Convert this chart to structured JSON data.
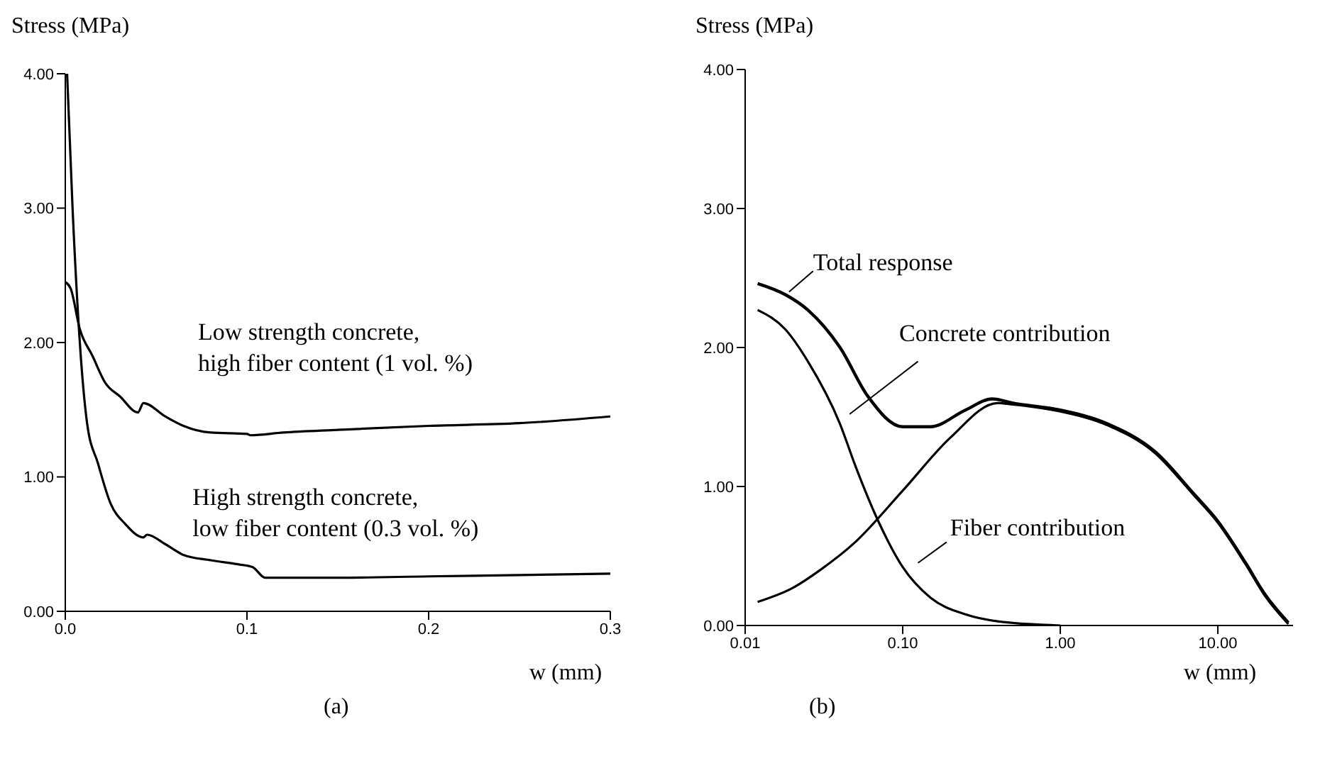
{
  "chart_data": [
    {
      "type": "line",
      "xlabel": "w (mm)",
      "ylabel": "Stress (MPa)",
      "xlim": [
        0,
        0.3
      ],
      "ylim": [
        0,
        4
      ],
      "xticks": [
        {
          "value": 0,
          "label": "0.0"
        },
        0.1,
        0.2,
        0.3
      ],
      "yticks": [
        {
          "value": 0,
          "label": "0.00"
        },
        {
          "value": 1,
          "label": "1.00"
        },
        {
          "value": 2,
          "label": "2.00"
        },
        {
          "value": 3,
          "label": "3.00"
        },
        {
          "value": 4,
          "label": "4.00"
        }
      ],
      "series": [
        {
          "name": "Low strength concrete, high fiber content (1 vol. %)",
          "color": "#000000",
          "x": [
            0,
            0.003,
            0.008,
            0.015,
            0.022,
            0.03,
            0.04,
            0.043,
            0.055,
            0.065,
            0.08,
            0.1,
            0.102,
            0.12,
            0.15,
            0.2,
            0.25,
            0.3
          ],
          "values": [
            2.45,
            2.4,
            2.1,
            1.9,
            1.7,
            1.6,
            1.48,
            1.55,
            1.45,
            1.38,
            1.33,
            1.32,
            1.31,
            1.33,
            1.35,
            1.38,
            1.4,
            1.45
          ]
        },
        {
          "name": "High strength concrete, low fiber content (0.3 vol. %)",
          "color": "#000000",
          "x": [
            0.001,
            0.004,
            0.008,
            0.012,
            0.018,
            0.025,
            0.033,
            0.043,
            0.045,
            0.055,
            0.065,
            0.08,
            0.095,
            0.103,
            0.11,
            0.15,
            0.2,
            0.25,
            0.3
          ],
          "values": [
            4.0,
            3.0,
            2.0,
            1.4,
            1.1,
            0.8,
            0.65,
            0.55,
            0.57,
            0.5,
            0.42,
            0.38,
            0.35,
            0.33,
            0.25,
            0.25,
            0.26,
            0.27,
            0.28
          ]
        }
      ],
      "annotations": [
        "(a)"
      ]
    },
    {
      "type": "line",
      "log": "x",
      "xlabel": "w (mm)",
      "ylabel": "Stress (MPa)",
      "xlim": [
        0.01,
        30
      ],
      "ylim": [
        0,
        4
      ],
      "xticks": [
        0.01,
        {
          "value": 0.1,
          "label": "0.10"
        },
        {
          "value": 1,
          "label": "1.00"
        },
        {
          "value": 10,
          "label": "10.00"
        }
      ],
      "yticks": [
        {
          "value": 0,
          "label": "0.00"
        },
        {
          "value": 1,
          "label": "1.00"
        },
        {
          "value": 2,
          "label": "2.00"
        },
        {
          "value": 3,
          "label": "3.00"
        },
        {
          "value": 4,
          "label": "4.00"
        }
      ],
      "series": [
        {
          "name": "Total response",
          "color": "#000000",
          "x": [
            0.012,
            0.018,
            0.025,
            0.04,
            0.06,
            0.1,
            0.15,
            0.25,
            0.37,
            0.5,
            1,
            2,
            4,
            7,
            10,
            15,
            20,
            28
          ],
          "values": [
            2.46,
            2.38,
            2.27,
            2.0,
            1.65,
            1.43,
            1.43,
            1.55,
            1.63,
            1.6,
            1.55,
            1.45,
            1.25,
            0.95,
            0.75,
            0.45,
            0.22,
            0.02
          ]
        },
        {
          "name": "Concrete contribution",
          "color": "#000000",
          "x": [
            0.012,
            0.02,
            0.03,
            0.05,
            0.1,
            0.2,
            0.4,
            0.5,
            1,
            2,
            4,
            7,
            10,
            15,
            20,
            28
          ],
          "values": [
            0.17,
            0.27,
            0.4,
            0.6,
            0.97,
            1.35,
            1.6,
            1.59,
            1.54,
            1.44,
            1.24,
            0.94,
            0.74,
            0.44,
            0.21,
            0.01
          ]
        },
        {
          "name": "Fiber contribution",
          "color": "#000000",
          "x": [
            0.012,
            0.018,
            0.025,
            0.04,
            0.05,
            0.07,
            0.1,
            0.15,
            0.25,
            0.4,
            1
          ],
          "values": [
            2.27,
            2.13,
            1.9,
            1.45,
            1.15,
            0.75,
            0.42,
            0.2,
            0.08,
            0.03,
            0
          ]
        }
      ],
      "annotations": [
        "(b)"
      ]
    }
  ]
}
